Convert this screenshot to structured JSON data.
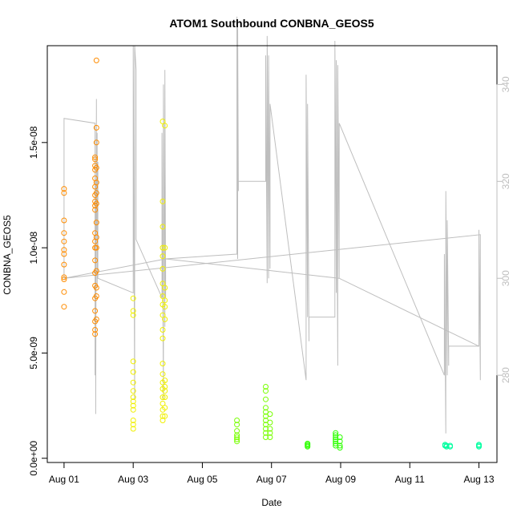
{
  "chart_data": {
    "type": "scatter",
    "title": "ATOM1 Southbound CONBNA_GEOS5",
    "xlabel": "Date",
    "ylabel": "CONBNA_GEOS5",
    "xlim": [
      "2016-07-31T12:22",
      "2016-08-13T12:30"
    ],
    "ylim": [
      -2e-10,
      1.96e-08
    ],
    "y2lim": [
      262,
      348
    ],
    "x_ticks": [
      {
        "date": "2016-08-01",
        "label": "Aug 01"
      },
      {
        "date": "2016-08-03",
        "label": "Aug 03"
      },
      {
        "date": "2016-08-05",
        "label": "Aug 05"
      },
      {
        "date": "2016-08-07",
        "label": "Aug 07"
      },
      {
        "date": "2016-08-09",
        "label": "Aug 09"
      },
      {
        "date": "2016-08-11",
        "label": "Aug 11"
      },
      {
        "date": "2016-08-13",
        "label": "Aug 13"
      }
    ],
    "y_ticks": [
      {
        "value": 0.0,
        "label": "0.0e+00"
      },
      {
        "value": 5e-09,
        "label": "5.0e-09"
      },
      {
        "value": 1e-08,
        "label": "1.0e-08"
      },
      {
        "value": 1.5e-08,
        "label": "1.5e-08"
      }
    ],
    "y2_ticks": [
      {
        "value": 280,
        "label": "280"
      },
      {
        "value": 300,
        "label": "300"
      },
      {
        "value": 320,
        "label": "320"
      },
      {
        "value": 340,
        "label": "340"
      }
    ],
    "grid": false,
    "colors": {
      "orange": "#ff8c00",
      "amber": "#ffbf00",
      "yellow": "#f0f000",
      "yellow_green": "#c8ff00",
      "light_green": "#78ff00",
      "green": "#2dff00",
      "teal_green": "#00ffa0",
      "secondary_line": "#bebebe",
      "axis": "#000000",
      "y2_axis": "#bebebe"
    },
    "series": [
      {
        "color": "orange",
        "points": [
          {
            "x": "2016-08-01T00:00",
            "y": 1.28e-08
          },
          {
            "x": "2016-08-01T00:00",
            "y": 1.26e-08
          },
          {
            "x": "2016-08-01T00:00",
            "y": 1.13e-08
          },
          {
            "x": "2016-08-01T00:00",
            "y": 1.07e-08
          },
          {
            "x": "2016-08-01T00:00",
            "y": 1.03e-08
          },
          {
            "x": "2016-08-01T00:00",
            "y": 9.9e-09
          },
          {
            "x": "2016-08-01T00:00",
            "y": 9.7e-09
          },
          {
            "x": "2016-08-01T00:00",
            "y": 9.2e-09
          },
          {
            "x": "2016-08-01T00:00",
            "y": 8.6e-09
          },
          {
            "x": "2016-08-01T00:00",
            "y": 8.5e-09
          },
          {
            "x": "2016-08-01T00:00",
            "y": 7.9e-09
          },
          {
            "x": "2016-08-01T00:00",
            "y": 7.2e-09
          },
          {
            "x": "2016-08-01T21:30",
            "y": 1.43e-08
          },
          {
            "x": "2016-08-01T21:30",
            "y": 1.42e-08
          },
          {
            "x": "2016-08-01T21:30",
            "y": 1.39e-08
          },
          {
            "x": "2016-08-01T21:30",
            "y": 1.37e-08
          },
          {
            "x": "2016-08-01T21:30",
            "y": 1.33e-08
          },
          {
            "x": "2016-08-01T21:30",
            "y": 1.29e-08
          },
          {
            "x": "2016-08-01T21:30",
            "y": 1.25e-08
          },
          {
            "x": "2016-08-01T21:30",
            "y": 1.22e-08
          },
          {
            "x": "2016-08-01T21:30",
            "y": 1.2e-08
          },
          {
            "x": "2016-08-01T21:30",
            "y": 1.18e-08
          },
          {
            "x": "2016-08-01T21:30",
            "y": 1.07e-08
          },
          {
            "x": "2016-08-01T21:30",
            "y": 1.03e-08
          },
          {
            "x": "2016-08-01T21:30",
            "y": 1e-08
          },
          {
            "x": "2016-08-01T21:30",
            "y": 9.4e-09
          },
          {
            "x": "2016-08-01T21:30",
            "y": 8.8e-09
          },
          {
            "x": "2016-08-01T21:30",
            "y": 8.2e-09
          },
          {
            "x": "2016-08-01T21:30",
            "y": 7.6e-09
          },
          {
            "x": "2016-08-01T21:30",
            "y": 7e-09
          },
          {
            "x": "2016-08-01T21:30",
            "y": 6.5e-09
          },
          {
            "x": "2016-08-01T21:30",
            "y": 6.1e-09
          },
          {
            "x": "2016-08-01T21:30",
            "y": 5.9e-09
          },
          {
            "x": "2016-08-01T22:30",
            "y": 1.89e-08
          },
          {
            "x": "2016-08-01T22:30",
            "y": 1.57e-08
          },
          {
            "x": "2016-08-01T22:30",
            "y": 1.5e-08
          },
          {
            "x": "2016-08-01T22:30",
            "y": 1.38e-08
          },
          {
            "x": "2016-08-01T22:30",
            "y": 1.31e-08
          },
          {
            "x": "2016-08-01T22:30",
            "y": 1.26e-08
          },
          {
            "x": "2016-08-01T22:30",
            "y": 1.21e-08
          },
          {
            "x": "2016-08-01T22:30",
            "y": 1.12e-08
          },
          {
            "x": "2016-08-01T22:30",
            "y": 1.05e-08
          },
          {
            "x": "2016-08-01T22:30",
            "y": 1e-08
          },
          {
            "x": "2016-08-01T22:30",
            "y": 8.9e-09
          },
          {
            "x": "2016-08-01T22:30",
            "y": 8.1e-09
          },
          {
            "x": "2016-08-01T22:30",
            "y": 7.7e-09
          },
          {
            "x": "2016-08-01T22:30",
            "y": 6.6e-09
          }
        ]
      },
      {
        "color": "yellow",
        "points": [
          {
            "x": "2016-08-03T00:00",
            "y": 7.6e-09
          },
          {
            "x": "2016-08-03T00:00",
            "y": 7e-09
          },
          {
            "x": "2016-08-03T00:00",
            "y": 6.8e-09
          },
          {
            "x": "2016-08-03T00:00",
            "y": 4.6e-09
          },
          {
            "x": "2016-08-03T00:00",
            "y": 4.1e-09
          },
          {
            "x": "2016-08-03T00:00",
            "y": 3.6e-09
          },
          {
            "x": "2016-08-03T00:00",
            "y": 3.2e-09
          },
          {
            "x": "2016-08-03T00:00",
            "y": 2.9e-09
          },
          {
            "x": "2016-08-03T00:00",
            "y": 2.7e-09
          },
          {
            "x": "2016-08-03T00:00",
            "y": 2.5e-09
          },
          {
            "x": "2016-08-03T00:00",
            "y": 2.3e-09
          },
          {
            "x": "2016-08-03T00:00",
            "y": 1.8e-09
          },
          {
            "x": "2016-08-03T00:00",
            "y": 1.6e-09
          },
          {
            "x": "2016-08-03T00:00",
            "y": 1.4e-09
          },
          {
            "x": "2016-08-03T20:30",
            "y": 1.6e-08
          },
          {
            "x": "2016-08-03T20:30",
            "y": 1.22e-08
          },
          {
            "x": "2016-08-03T20:30",
            "y": 1.1e-08
          },
          {
            "x": "2016-08-03T20:30",
            "y": 1e-08
          },
          {
            "x": "2016-08-03T20:30",
            "y": 9.6e-09
          },
          {
            "x": "2016-08-03T20:30",
            "y": 9e-09
          },
          {
            "x": "2016-08-03T20:30",
            "y": 8.3e-09
          },
          {
            "x": "2016-08-03T20:30",
            "y": 7.7e-09
          },
          {
            "x": "2016-08-03T20:30",
            "y": 7.3e-09
          },
          {
            "x": "2016-08-03T20:30",
            "y": 6.8e-09
          },
          {
            "x": "2016-08-03T20:30",
            "y": 6.1e-09
          },
          {
            "x": "2016-08-03T20:30",
            "y": 5.7e-09
          },
          {
            "x": "2016-08-03T20:30",
            "y": 4.5e-09
          },
          {
            "x": "2016-08-03T20:30",
            "y": 4e-09
          },
          {
            "x": "2016-08-03T20:30",
            "y": 3.6e-09
          },
          {
            "x": "2016-08-03T20:30",
            "y": 3.3e-09
          },
          {
            "x": "2016-08-03T20:30",
            "y": 2.9e-09
          },
          {
            "x": "2016-08-03T20:30",
            "y": 2.6e-09
          },
          {
            "x": "2016-08-03T20:30",
            "y": 2.3e-09
          },
          {
            "x": "2016-08-03T20:30",
            "y": 2e-09
          },
          {
            "x": "2016-08-03T20:30",
            "y": 1.8e-09
          },
          {
            "x": "2016-08-03T22:00",
            "y": 1.58e-08
          },
          {
            "x": "2016-08-03T22:00",
            "y": 1e-08
          },
          {
            "x": "2016-08-03T22:00",
            "y": 8.1e-09
          },
          {
            "x": "2016-08-03T22:00",
            "y": 7.5e-09
          },
          {
            "x": "2016-08-03T22:00",
            "y": 7.2e-09
          },
          {
            "x": "2016-08-03T22:00",
            "y": 6.6e-09
          },
          {
            "x": "2016-08-03T22:00",
            "y": 3.7e-09
          },
          {
            "x": "2016-08-03T22:00",
            "y": 3.4e-09
          },
          {
            "x": "2016-08-03T22:00",
            "y": 3.2e-09
          },
          {
            "x": "2016-08-03T22:00",
            "y": 2.9e-09
          },
          {
            "x": "2016-08-03T22:00",
            "y": 2.4e-09
          },
          {
            "x": "2016-08-03T22:00",
            "y": 2e-09
          }
        ]
      },
      {
        "color": "light_green",
        "points": [
          {
            "x": "2016-08-06T00:00",
            "y": 1.8e-09
          },
          {
            "x": "2016-08-06T00:00",
            "y": 1.6e-09
          },
          {
            "x": "2016-08-06T00:00",
            "y": 1.3e-09
          },
          {
            "x": "2016-08-06T00:00",
            "y": 1.1e-09
          },
          {
            "x": "2016-08-06T00:00",
            "y": 1e-09
          },
          {
            "x": "2016-08-06T00:00",
            "y": 9e-10
          },
          {
            "x": "2016-08-06T00:00",
            "y": 8e-10
          },
          {
            "x": "2016-08-06T20:00",
            "y": 3.4e-09
          },
          {
            "x": "2016-08-06T20:00",
            "y": 3.2e-09
          },
          {
            "x": "2016-08-06T20:00",
            "y": 2.8e-09
          },
          {
            "x": "2016-08-06T20:00",
            "y": 2.4e-09
          },
          {
            "x": "2016-08-06T20:00",
            "y": 2.2e-09
          },
          {
            "x": "2016-08-06T20:00",
            "y": 2e-09
          },
          {
            "x": "2016-08-06T20:00",
            "y": 1.8e-09
          },
          {
            "x": "2016-08-06T20:00",
            "y": 1.6e-09
          },
          {
            "x": "2016-08-06T20:00",
            "y": 1.4e-09
          },
          {
            "x": "2016-08-06T20:00",
            "y": 1.2e-09
          },
          {
            "x": "2016-08-06T20:00",
            "y": 1e-09
          },
          {
            "x": "2016-08-06T23:00",
            "y": 2.1e-09
          },
          {
            "x": "2016-08-06T23:00",
            "y": 1.7e-09
          },
          {
            "x": "2016-08-06T23:00",
            "y": 1.4e-09
          },
          {
            "x": "2016-08-06T23:00",
            "y": 1.2e-09
          },
          {
            "x": "2016-08-06T23:00",
            "y": 1e-09
          }
        ]
      },
      {
        "color": "green",
        "points": [
          {
            "x": "2016-08-08T01:00",
            "y": 7e-10
          },
          {
            "x": "2016-08-08T01:00",
            "y": 6.5e-10
          },
          {
            "x": "2016-08-08T01:00",
            "y": 6e-10
          },
          {
            "x": "2016-08-08T01:00",
            "y": 5.5e-10
          },
          {
            "x": "2016-08-08T20:30",
            "y": 1.2e-09
          },
          {
            "x": "2016-08-08T20:30",
            "y": 1.1e-09
          },
          {
            "x": "2016-08-08T20:30",
            "y": 1e-09
          },
          {
            "x": "2016-08-08T20:30",
            "y": 9e-10
          },
          {
            "x": "2016-08-08T20:30",
            "y": 8e-10
          },
          {
            "x": "2016-08-08T20:30",
            "y": 7e-10
          },
          {
            "x": "2016-08-08T20:30",
            "y": 6e-10
          },
          {
            "x": "2016-08-08T23:30",
            "y": 1e-09
          },
          {
            "x": "2016-08-08T23:30",
            "y": 8e-10
          },
          {
            "x": "2016-08-08T23:30",
            "y": 6e-10
          },
          {
            "x": "2016-08-08T23:30",
            "y": 5e-10
          }
        ]
      },
      {
        "color": "teal_green",
        "points": [
          {
            "x": "2016-08-12T00:30",
            "y": 6.5e-10
          },
          {
            "x": "2016-08-12T00:30",
            "y": 6e-10
          },
          {
            "x": "2016-08-12T01:30",
            "y": 6e-10
          },
          {
            "x": "2016-08-12T01:30",
            "y": 5.5e-10
          },
          {
            "x": "2016-08-12T04:00",
            "y": 6e-10
          },
          {
            "x": "2016-08-12T04:00",
            "y": 5.5e-10
          },
          {
            "x": "2016-08-13T00:00",
            "y": 6.5e-10
          },
          {
            "x": "2016-08-13T00:00",
            "y": 6e-10
          },
          {
            "x": "2016-08-13T00:00",
            "y": 5.5e-10
          }
        ]
      }
    ],
    "secondary_series": {
      "axis": "right",
      "color": "secondary_line",
      "points": [
        {
          "x": "2016-08-01T00:00",
          "y2": 300
        },
        {
          "x": "2016-08-01T00:00",
          "y2": 333
        },
        {
          "x": "2016-08-01T21:30",
          "y2": 332
        },
        {
          "x": "2016-08-01T21:30",
          "y2": 280
        },
        {
          "x": "2016-08-01T22:00",
          "y2": 320
        },
        {
          "x": "2016-08-01T22:00",
          "y2": 272
        },
        {
          "x": "2016-08-01T22:30",
          "y2": 337
        },
        {
          "x": "2016-08-01T22:30",
          "y2": 310
        },
        {
          "x": "2016-08-01T23:00",
          "y2": 330
        },
        {
          "x": "2016-08-01T23:00",
          "y2": 298
        },
        {
          "x": "2016-08-01T23:30",
          "y2": 324
        },
        {
          "x": "2016-08-01T23:30",
          "y2": 300
        },
        {
          "x": "2016-08-03T00:00",
          "y2": 297
        },
        {
          "x": "2016-08-03T00:00",
          "y2": 348
        },
        {
          "x": "2016-08-03T01:00",
          "y2": 275
        },
        {
          "x": "2016-08-03T01:00",
          "y2": 348
        },
        {
          "x": "2016-08-03T02:00",
          "y2": 343
        },
        {
          "x": "2016-08-03T02:00",
          "y2": 308
        },
        {
          "x": "2016-08-03T20:00",
          "y2": 296
        },
        {
          "x": "2016-08-03T20:00",
          "y2": 330
        },
        {
          "x": "2016-08-03T21:00",
          "y2": 275
        },
        {
          "x": "2016-08-03T21:00",
          "y2": 340
        },
        {
          "x": "2016-08-03T22:00",
          "y2": 290
        },
        {
          "x": "2016-08-03T22:00",
          "y2": 343
        },
        {
          "x": "2016-08-03T22:30",
          "y2": 296
        },
        {
          "x": "2016-08-03T22:30",
          "y2": 304
        },
        {
          "x": "2016-08-06T00:00",
          "y2": 305
        },
        {
          "x": "2016-08-06T00:00",
          "y2": 354
        },
        {
          "x": "2016-08-06T00:30",
          "y2": 304
        },
        {
          "x": "2016-08-06T00:30",
          "y2": 352
        },
        {
          "x": "2016-08-06T01:00",
          "y2": 318
        },
        {
          "x": "2016-08-06T01:00",
          "y2": 320
        },
        {
          "x": "2016-08-06T20:00",
          "y2": 320
        },
        {
          "x": "2016-08-06T20:00",
          "y2": 346
        },
        {
          "x": "2016-08-06T21:00",
          "y2": 299
        },
        {
          "x": "2016-08-06T21:00",
          "y2": 350
        },
        {
          "x": "2016-08-06T22:00",
          "y2": 300
        },
        {
          "x": "2016-08-06T22:00",
          "y2": 346
        },
        {
          "x": "2016-08-06T23:00",
          "y2": 302
        },
        {
          "x": "2016-08-06T23:00",
          "y2": 336
        },
        {
          "x": "2016-08-08T00:00",
          "y2": 279
        },
        {
          "x": "2016-08-08T00:00",
          "y2": 342
        },
        {
          "x": "2016-08-08T01:00",
          "y2": 292
        },
        {
          "x": "2016-08-08T01:00",
          "y2": 336
        },
        {
          "x": "2016-08-08T02:00",
          "y2": 287
        },
        {
          "x": "2016-08-08T02:00",
          "y2": 292
        },
        {
          "x": "2016-08-08T20:00",
          "y2": 292
        },
        {
          "x": "2016-08-08T20:00",
          "y2": 349
        },
        {
          "x": "2016-08-08T21:00",
          "y2": 297
        },
        {
          "x": "2016-08-08T21:00",
          "y2": 345
        },
        {
          "x": "2016-08-08T22:00",
          "y2": 282
        },
        {
          "x": "2016-08-08T22:00",
          "y2": 344
        },
        {
          "x": "2016-08-08T23:00",
          "y2": 300
        },
        {
          "x": "2016-08-08T23:00",
          "y2": 332
        },
        {
          "x": "2016-08-12T00:00",
          "y2": 280
        },
        {
          "x": "2016-08-12T00:00",
          "y2": 305
        },
        {
          "x": "2016-08-12T01:00",
          "y2": 268
        },
        {
          "x": "2016-08-12T01:00",
          "y2": 318
        },
        {
          "x": "2016-08-12T02:00",
          "y2": 280
        },
        {
          "x": "2016-08-12T02:00",
          "y2": 312
        },
        {
          "x": "2016-08-12T03:00",
          "y2": 282
        },
        {
          "x": "2016-08-12T03:00",
          "y2": 286
        },
        {
          "x": "2016-08-13T00:00",
          "y2": 286
        },
        {
          "x": "2016-08-13T00:00",
          "y2": 310
        },
        {
          "x": "2016-08-13T01:00",
          "y2": 279
        },
        {
          "x": "2016-08-13T01:00",
          "y2": 309
        },
        {
          "x": "2016-08-01T00:00",
          "y2": 300
        },
        {
          "x": "2016-08-03T22:30",
          "y2": 304
        },
        {
          "x": "2016-08-08T23:00",
          "y2": 300
        },
        {
          "x": "2016-08-13T00:00",
          "y2": 286
        }
      ]
    }
  }
}
